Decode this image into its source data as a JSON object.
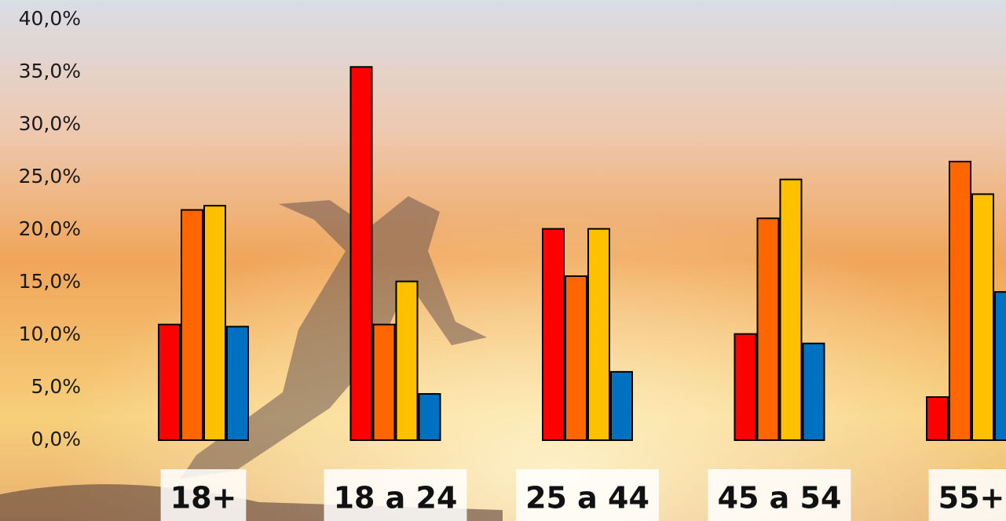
{
  "chart_data": {
    "type": "bar",
    "categories": [
      "18+",
      "18 a 24",
      "25 a 44",
      "45 a 54",
      "55+"
    ],
    "series": [
      {
        "color": "#ff0000",
        "values": [
          11.0,
          35.5,
          20.1,
          10.1,
          4.1
        ]
      },
      {
        "color": "#ff6600",
        "values": [
          21.9,
          11.0,
          15.6,
          21.1,
          26.5
        ]
      },
      {
        "color": "#ffc000",
        "values": [
          22.3,
          15.1,
          20.1,
          24.8,
          23.4
        ]
      },
      {
        "color": "#0070c0",
        "values": [
          10.8,
          4.4,
          6.5,
          9.2,
          14.1
        ]
      }
    ],
    "ylim": [
      0,
      40
    ],
    "yticks": [
      {
        "value": 0,
        "label": "0,0%"
      },
      {
        "value": 5,
        "label": "5,0%"
      },
      {
        "value": 10,
        "label": "10,0%"
      },
      {
        "value": 15,
        "label": "15,0%"
      },
      {
        "value": 20,
        "label": "20,0%"
      },
      {
        "value": 25,
        "label": "25,0%"
      },
      {
        "value": 30,
        "label": "30,0%"
      },
      {
        "value": 35,
        "label": "35,0%"
      },
      {
        "value": 40,
        "label": "40,0%"
      }
    ],
    "grid": false
  }
}
